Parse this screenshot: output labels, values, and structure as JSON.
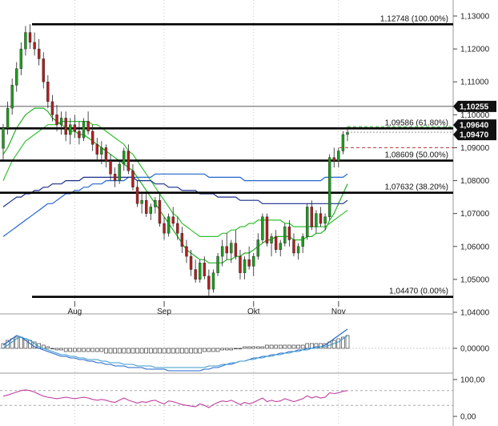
{
  "chart_data": {
    "type": "candlestick",
    "instrument_scale": "price",
    "price_axis": {
      "range": [
        1.04,
        1.13
      ],
      "ticks": [
        "1,13000",
        "1,12000",
        "1,11000",
        "1,10000",
        "1,09000",
        "1,08000",
        "1,07000",
        "1,06000",
        "1,05000",
        "1,04000"
      ],
      "tick_values": [
        1.13,
        1.12,
        1.11,
        1.1,
        1.09,
        1.08,
        1.07,
        1.06,
        1.05,
        1.04
      ]
    },
    "time_axis": {
      "labels": [
        "Aug",
        "Sep",
        "Okt",
        "Nov"
      ],
      "label_index": [
        16,
        36,
        56,
        75
      ]
    },
    "fibonacci_levels": [
      {
        "label": "1,12748 (100.00%)",
        "value": 1.12748
      },
      {
        "label": "1,09586 (61.80%)",
        "value": 1.09586
      },
      {
        "label": "1,08609 (50.00%)",
        "value": 1.08609
      },
      {
        "label": "1,07632 (38.20%)",
        "value": 1.07632
      },
      {
        "label": "1,04470 (0.00%)",
        "value": 1.0447
      }
    ],
    "horizontal_line": {
      "value": 1.10255
    },
    "price_badges": [
      {
        "label": "1,10255",
        "value": 1.10255,
        "color": "#111111"
      },
      {
        "label": "1,09640",
        "value": 1.0964,
        "color": "#111111"
      },
      {
        "label": "1,09470",
        "value": 1.0947,
        "color": "#111111"
      }
    ],
    "candles": [
      [
        1.0898,
        1.0972,
        1.086,
        1.096
      ],
      [
        1.096,
        1.104,
        1.094,
        1.102
      ],
      [
        1.102,
        1.111,
        1.1,
        1.109
      ],
      [
        1.109,
        1.116,
        1.107,
        1.114
      ],
      [
        1.114,
        1.122,
        1.112,
        1.12
      ],
      [
        1.12,
        1.127,
        1.118,
        1.125
      ],
      [
        1.125,
        1.1275,
        1.12,
        1.122
      ],
      [
        1.122,
        1.125,
        1.118,
        1.12
      ],
      [
        1.12,
        1.123,
        1.115,
        1.117
      ],
      [
        1.117,
        1.119,
        1.108,
        1.11
      ],
      [
        1.11,
        1.112,
        1.102,
        1.104
      ],
      [
        1.104,
        1.106,
        1.098,
        1.1
      ],
      [
        1.1,
        1.103,
        1.095,
        1.097
      ],
      [
        1.097,
        1.101,
        1.094,
        1.099
      ],
      [
        1.099,
        1.101,
        1.092,
        1.094
      ],
      [
        1.094,
        1.099,
        1.091,
        1.097
      ],
      [
        1.097,
        1.1,
        1.093,
        1.095
      ],
      [
        1.095,
        1.098,
        1.091,
        1.093
      ],
      [
        1.093,
        1.099,
        1.092,
        1.098
      ],
      [
        1.098,
        1.101,
        1.094,
        1.095
      ],
      [
        1.095,
        1.097,
        1.089,
        1.091
      ],
      [
        1.091,
        1.093,
        1.086,
        1.088
      ],
      [
        1.088,
        1.092,
        1.085,
        1.09
      ],
      [
        1.09,
        1.091,
        1.084,
        1.086
      ],
      [
        1.086,
        1.088,
        1.08,
        1.082
      ],
      [
        1.082,
        1.084,
        1.078,
        1.08
      ],
      [
        1.08,
        1.086,
        1.079,
        1.085
      ],
      [
        1.085,
        1.09,
        1.083,
        1.089
      ],
      [
        1.089,
        1.091,
        1.082,
        1.083
      ],
      [
        1.083,
        1.085,
        1.077,
        1.078
      ],
      [
        1.078,
        1.08,
        1.072,
        1.073
      ],
      [
        1.073,
        1.076,
        1.07,
        1.074
      ],
      [
        1.074,
        1.076,
        1.069,
        1.07
      ],
      [
        1.07,
        1.073,
        1.068,
        1.072
      ],
      [
        1.072,
        1.075,
        1.07,
        1.074
      ],
      [
        1.074,
        1.076,
        1.066,
        1.067
      ],
      [
        1.067,
        1.069,
        1.062,
        1.064
      ],
      [
        1.064,
        1.07,
        1.063,
        1.069
      ],
      [
        1.069,
        1.072,
        1.066,
        1.067
      ],
      [
        1.067,
        1.069,
        1.062,
        1.064
      ],
      [
        1.064,
        1.066,
        1.058,
        1.06
      ],
      [
        1.06,
        1.062,
        1.055,
        1.057
      ],
      [
        1.057,
        1.059,
        1.051,
        1.053
      ],
      [
        1.053,
        1.056,
        1.049,
        1.05
      ],
      [
        1.05,
        1.056,
        1.049,
        1.055
      ],
      [
        1.055,
        1.057,
        1.05,
        1.051
      ],
      [
        1.051,
        1.053,
        1.0447,
        1.047
      ],
      [
        1.047,
        1.053,
        1.046,
        1.052
      ],
      [
        1.052,
        1.058,
        1.051,
        1.057
      ],
      [
        1.057,
        1.062,
        1.054,
        1.06
      ],
      [
        1.06,
        1.064,
        1.056,
        1.058
      ],
      [
        1.058,
        1.062,
        1.055,
        1.061
      ],
      [
        1.061,
        1.065,
        1.056,
        1.057
      ],
      [
        1.057,
        1.059,
        1.05,
        1.052
      ],
      [
        1.052,
        1.057,
        1.05,
        1.056
      ],
      [
        1.056,
        1.06,
        1.053,
        1.054
      ],
      [
        1.054,
        1.058,
        1.051,
        1.057
      ],
      [
        1.057,
        1.064,
        1.056,
        1.062
      ],
      [
        1.062,
        1.07,
        1.061,
        1.069
      ],
      [
        1.069,
        1.07,
        1.06,
        1.061
      ],
      [
        1.061,
        1.064,
        1.057,
        1.063
      ],
      [
        1.063,
        1.065,
        1.058,
        1.059
      ],
      [
        1.059,
        1.062,
        1.057,
        1.061
      ],
      [
        1.061,
        1.067,
        1.06,
        1.066
      ],
      [
        1.066,
        1.068,
        1.06,
        1.062
      ],
      [
        1.062,
        1.064,
        1.057,
        1.058
      ],
      [
        1.058,
        1.061,
        1.056,
        1.06
      ],
      [
        1.06,
        1.064,
        1.058,
        1.063
      ],
      [
        1.063,
        1.073,
        1.062,
        1.072
      ],
      [
        1.072,
        1.074,
        1.065,
        1.066
      ],
      [
        1.066,
        1.071,
        1.064,
        1.07
      ],
      [
        1.07,
        1.072,
        1.066,
        1.067
      ],
      [
        1.067,
        1.07,
        1.065,
        1.069
      ],
      [
        1.069,
        1.088,
        1.068,
        1.087
      ],
      [
        1.087,
        1.09,
        1.084,
        1.086
      ],
      [
        1.086,
        1.09,
        1.084,
        1.089
      ],
      [
        1.089,
        1.095,
        1.088,
        1.094
      ],
      [
        1.094,
        1.0964,
        1.092,
        1.0947
      ]
    ],
    "moving_averages": [
      {
        "color": "#22b022",
        "values": [
          1.088,
          1.09,
          1.093,
          1.096,
          1.098,
          1.1,
          1.101,
          1.102,
          1.102,
          1.102,
          1.101,
          1.099,
          1.098,
          1.097,
          1.096,
          1.095,
          1.095,
          1.094,
          1.094,
          1.093,
          1.092,
          1.091,
          1.09,
          1.089,
          1.088,
          1.087,
          1.086,
          1.085,
          1.084,
          1.083,
          1.081,
          1.079,
          1.077,
          1.075,
          1.073,
          1.071,
          1.069,
          1.067,
          1.065,
          1.063,
          1.061,
          1.059,
          1.058,
          1.057,
          1.056,
          1.056,
          1.055,
          1.055,
          1.055,
          1.055,
          1.056,
          1.056,
          1.057,
          1.057,
          1.058,
          1.058,
          1.059,
          1.06,
          1.061,
          1.062,
          1.062,
          1.063,
          1.063,
          1.063,
          1.063,
          1.062,
          1.062,
          1.062,
          1.063,
          1.063,
          1.064,
          1.064,
          1.065,
          1.068,
          1.07,
          1.073,
          1.076,
          1.079
        ]
      },
      {
        "color": "#33c033",
        "values": [
          1.08,
          1.083,
          1.086,
          1.088,
          1.09,
          1.092,
          1.093,
          1.094,
          1.095,
          1.096,
          1.097,
          1.097,
          1.097,
          1.098,
          1.098,
          1.098,
          1.098,
          1.098,
          1.098,
          1.098,
          1.097,
          1.097,
          1.096,
          1.095,
          1.094,
          1.093,
          1.092,
          1.091,
          1.089,
          1.088,
          1.086,
          1.084,
          1.082,
          1.08,
          1.078,
          1.076,
          1.074,
          1.072,
          1.07,
          1.069,
          1.067,
          1.066,
          1.065,
          1.064,
          1.063,
          1.063,
          1.063,
          1.063,
          1.063,
          1.064,
          1.064,
          1.065,
          1.065,
          1.066,
          1.066,
          1.067,
          1.067,
          1.068,
          1.068,
          1.068,
          1.068,
          1.068,
          1.068,
          1.067,
          1.067,
          1.066,
          1.066,
          1.066,
          1.066,
          1.066,
          1.066,
          1.066,
          1.066,
          1.067,
          1.068,
          1.069,
          1.07,
          1.071
        ]
      },
      {
        "color": "#2266cc",
        "values": [
          1.063,
          1.064,
          1.065,
          1.066,
          1.067,
          1.068,
          1.069,
          1.07,
          1.071,
          1.072,
          1.073,
          1.073,
          1.074,
          1.075,
          1.076,
          1.076,
          1.077,
          1.077,
          1.078,
          1.078,
          1.079,
          1.079,
          1.079,
          1.08,
          1.08,
          1.08,
          1.08,
          1.08,
          1.081,
          1.081,
          1.081,
          1.081,
          1.081,
          1.081,
          1.082,
          1.082,
          1.082,
          1.082,
          1.082,
          1.082,
          1.082,
          1.082,
          1.082,
          1.082,
          1.082,
          1.082,
          1.081,
          1.081,
          1.081,
          1.081,
          1.081,
          1.081,
          1.081,
          1.081,
          1.08,
          1.08,
          1.08,
          1.08,
          1.08,
          1.08,
          1.08,
          1.08,
          1.08,
          1.08,
          1.08,
          1.08,
          1.08,
          1.08,
          1.08,
          1.08,
          1.08,
          1.08,
          1.081,
          1.081,
          1.081,
          1.081,
          1.081,
          1.082
        ]
      },
      {
        "color": "#1a2e8a",
        "values": [
          1.072,
          1.073,
          1.074,
          1.075,
          1.075,
          1.076,
          1.076,
          1.077,
          1.077,
          1.078,
          1.078,
          1.079,
          1.079,
          1.079,
          1.08,
          1.08,
          1.08,
          1.08,
          1.081,
          1.081,
          1.081,
          1.081,
          1.081,
          1.081,
          1.081,
          1.081,
          1.081,
          1.081,
          1.081,
          1.081,
          1.08,
          1.08,
          1.08,
          1.08,
          1.079,
          1.079,
          1.079,
          1.078,
          1.078,
          1.078,
          1.077,
          1.077,
          1.077,
          1.077,
          1.076,
          1.076,
          1.076,
          1.076,
          1.075,
          1.075,
          1.075,
          1.075,
          1.075,
          1.074,
          1.074,
          1.074,
          1.074,
          1.074,
          1.073,
          1.073,
          1.073,
          1.073,
          1.073,
          1.073,
          1.073,
          1.073,
          1.073,
          1.073,
          1.073,
          1.073,
          1.073,
          1.073,
          1.073,
          1.073,
          1.073,
          1.073,
          1.073,
          1.074
        ]
      }
    ],
    "macd_panel": {
      "ticks": [
        "0,00000"
      ],
      "histogram": [
        3,
        5,
        6,
        7,
        7,
        6,
        5,
        4,
        3,
        2,
        1,
        0,
        -1,
        -1,
        -2,
        -2,
        -2,
        -2,
        -2,
        -2,
        -2,
        -2,
        -2,
        -3,
        -3,
        -3,
        -3,
        -3,
        -3,
        -3,
        -3,
        -3,
        -3,
        -3,
        -3,
        -3,
        -3,
        -3,
        -3,
        -3,
        -3,
        -3,
        -3,
        -3,
        -3,
        -2,
        -2,
        -2,
        -2,
        -1,
        -1,
        -1,
        0,
        0,
        1,
        1,
        1,
        1,
        1,
        2,
        2,
        2,
        2,
        2,
        2,
        2,
        2,
        2,
        3,
        3,
        3,
        3,
        3,
        4,
        5,
        6,
        7,
        8
      ],
      "line_a": [
        2,
        4,
        6,
        8,
        7,
        5,
        3,
        1,
        0,
        -1,
        -2,
        -3,
        -4,
        -5,
        -5,
        -6,
        -6,
        -7,
        -7,
        -8,
        -8,
        -9,
        -9,
        -10,
        -10,
        -11,
        -11,
        -11,
        -12,
        -12,
        -12,
        -12,
        -13,
        -13,
        -13,
        -13,
        -13,
        -14,
        -14,
        -14,
        -14,
        -14,
        -14,
        -14,
        -14,
        -13,
        -13,
        -12,
        -12,
        -11,
        -10,
        -10,
        -9,
        -8,
        -8,
        -7,
        -6,
        -6,
        -5,
        -5,
        -4,
        -4,
        -3,
        -3,
        -2,
        -2,
        -1,
        -1,
        0,
        0,
        1,
        1,
        2,
        4,
        6,
        8,
        10,
        12
      ],
      "line_b": [
        0,
        2,
        4,
        6,
        7,
        6,
        5,
        3,
        1,
        0,
        -1,
        -2,
        -3,
        -4,
        -4,
        -5,
        -5,
        -6,
        -6,
        -7,
        -7,
        -7,
        -8,
        -8,
        -9,
        -9,
        -9,
        -10,
        -10,
        -10,
        -11,
        -11,
        -11,
        -11,
        -12,
        -12,
        -12,
        -12,
        -12,
        -12,
        -12,
        -12,
        -12,
        -12,
        -12,
        -12,
        -11,
        -11,
        -11,
        -10,
        -10,
        -9,
        -9,
        -8,
        -8,
        -7,
        -7,
        -6,
        -6,
        -5,
        -5,
        -4,
        -4,
        -3,
        -3,
        -2,
        -2,
        -1,
        -1,
        0,
        0,
        1,
        1,
        2,
        3,
        4,
        6,
        8
      ],
      "range": [
        -15,
        15
      ]
    },
    "rsi_panel": {
      "ticks": [
        "100,00",
        "0,00"
      ],
      "range": [
        0,
        100
      ],
      "values": [
        55,
        58,
        62,
        66,
        70,
        72,
        70,
        66,
        60,
        55,
        52,
        50,
        48,
        50,
        52,
        50,
        48,
        50,
        52,
        50,
        46,
        44,
        46,
        44,
        40,
        38,
        44,
        50,
        44,
        40,
        36,
        40,
        38,
        42,
        44,
        38,
        34,
        42,
        40,
        36,
        32,
        30,
        28,
        26,
        34,
        30,
        24,
        32,
        38,
        42,
        40,
        44,
        38,
        32,
        38,
        34,
        38,
        44,
        50,
        40,
        44,
        40,
        42,
        48,
        44,
        40,
        44,
        48,
        56,
        50,
        54,
        50,
        52,
        64,
        62,
        64,
        68,
        70
      ],
      "band_hi": 70,
      "band_lo": 30
    }
  }
}
